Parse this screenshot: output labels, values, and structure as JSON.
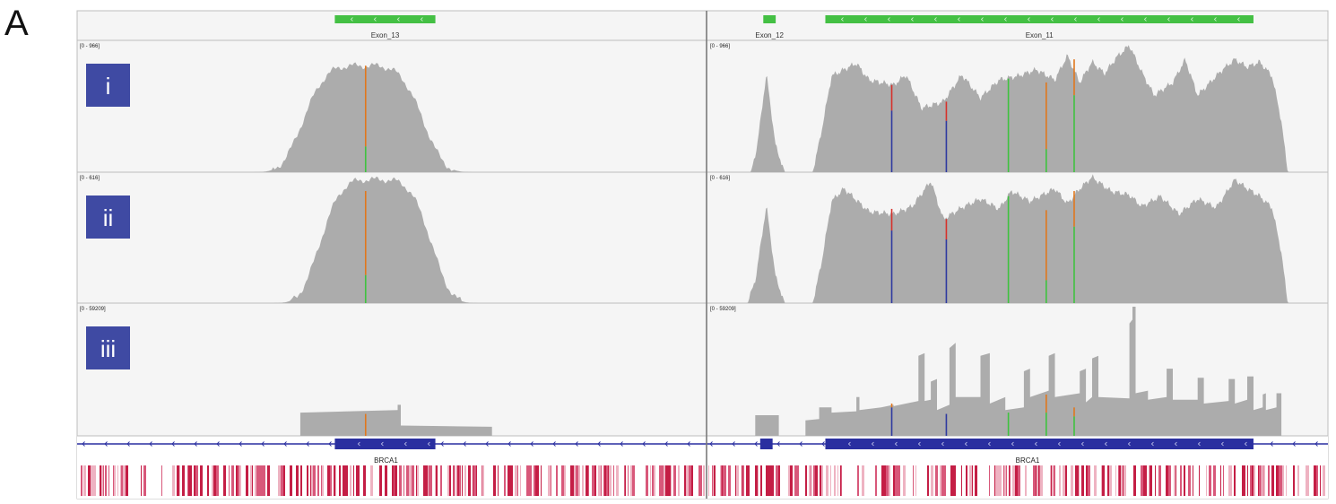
{
  "figure": {
    "panel_letter": "A"
  },
  "colors": {
    "coverage": "#acacac",
    "exon": "#44c044",
    "gene": "#2a2fa0",
    "badge": "#3f4aa3",
    "badge_text": "#ffffff",
    "conservation": "#c41e45",
    "track_bg": "#f5f5f5",
    "divider": "#bdbdbd",
    "marker_orange": "#e0771d",
    "marker_green": "#3fc23f",
    "marker_red": "#d6312b",
    "marker_blue": "#2f3aa0"
  },
  "chart_data": {
    "type": "area",
    "description_panels": [
      "left",
      "right"
    ],
    "exon_track": {
      "left": [
        {
          "label": "Exon_13",
          "start": 0.41,
          "end": 0.57
        }
      ],
      "right": [
        {
          "label": "Exon_12",
          "start": 0.09,
          "end": 0.11
        },
        {
          "label": "Exon_11",
          "start": 0.19,
          "end": 0.88
        }
      ]
    },
    "tracks": [
      {
        "name": "i",
        "range_label": "[0 - 966]",
        "max": 966,
        "left_peaks": [
          {
            "center": 0.455,
            "width": 0.28,
            "height": 0.83
          }
        ],
        "right_profile": [
          [
            0.07,
            0
          ],
          [
            0.08,
            0.2
          ],
          [
            0.095,
            0.77
          ],
          [
            0.11,
            0.2
          ],
          [
            0.125,
            0
          ],
          [
            0.17,
            0
          ],
          [
            0.185,
            0.35
          ],
          [
            0.2,
            0.75
          ],
          [
            0.24,
            0.85
          ],
          [
            0.26,
            0.72
          ],
          [
            0.3,
            0.68
          ],
          [
            0.32,
            0.76
          ],
          [
            0.345,
            0.5
          ],
          [
            0.38,
            0.55
          ],
          [
            0.41,
            0.76
          ],
          [
            0.44,
            0.58
          ],
          [
            0.47,
            0.72
          ],
          [
            0.5,
            0.75
          ],
          [
            0.53,
            0.8
          ],
          [
            0.56,
            0.72
          ],
          [
            0.58,
            0.91
          ],
          [
            0.6,
            0.7
          ],
          [
            0.62,
            0.86
          ],
          [
            0.64,
            0.77
          ],
          [
            0.66,
            0.9
          ],
          [
            0.68,
            0.99
          ],
          [
            0.7,
            0.78
          ],
          [
            0.72,
            0.6
          ],
          [
            0.75,
            0.7
          ],
          [
            0.77,
            0.88
          ],
          [
            0.79,
            0.6
          ],
          [
            0.83,
            0.8
          ],
          [
            0.85,
            0.88
          ],
          [
            0.87,
            0.82
          ],
          [
            0.89,
            0.86
          ],
          [
            0.91,
            0.75
          ],
          [
            0.925,
            0.4
          ],
          [
            0.935,
            0
          ]
        ],
        "left_markers": [
          {
            "pos": 0.459,
            "top": "marker_orange",
            "bottom": "marker_green",
            "level": 0.83,
            "split": 0.2
          }
        ],
        "right_markers": [
          {
            "pos": 0.297,
            "top": "marker_red",
            "bottom": "marker_blue",
            "level": 0.68,
            "split": 0.48
          },
          {
            "pos": 0.385,
            "top": "marker_red",
            "bottom": "marker_blue",
            "level": 0.55,
            "split": 0.4
          },
          {
            "pos": 0.485,
            "top": "marker_green",
            "bottom": "marker_green",
            "level": 0.73,
            "split": 0.73
          },
          {
            "pos": 0.546,
            "top": "marker_orange",
            "bottom": "marker_green",
            "level": 0.7,
            "split": 0.18
          },
          {
            "pos": 0.591,
            "top": "marker_orange",
            "bottom": "marker_green",
            "level": 0.88,
            "split": 0.6
          }
        ]
      },
      {
        "name": "ii",
        "range_label": "[0 - 616]",
        "max": 616,
        "left_peaks": [
          {
            "center": 0.475,
            "width": 0.26,
            "height": 0.97
          }
        ],
        "right_profile": [
          [
            0.065,
            0
          ],
          [
            0.078,
            0.2
          ],
          [
            0.095,
            0.77
          ],
          [
            0.11,
            0.2
          ],
          [
            0.125,
            0
          ],
          [
            0.17,
            0
          ],
          [
            0.185,
            0.35
          ],
          [
            0.2,
            0.8
          ],
          [
            0.22,
            0.9
          ],
          [
            0.26,
            0.72
          ],
          [
            0.3,
            0.7
          ],
          [
            0.33,
            0.76
          ],
          [
            0.36,
            0.96
          ],
          [
            0.38,
            0.66
          ],
          [
            0.41,
            0.75
          ],
          [
            0.44,
            0.82
          ],
          [
            0.47,
            0.74
          ],
          [
            0.49,
            0.88
          ],
          [
            0.52,
            0.8
          ],
          [
            0.56,
            0.9
          ],
          [
            0.58,
            0.78
          ],
          [
            0.6,
            0.9
          ],
          [
            0.62,
            0.99
          ],
          [
            0.65,
            0.88
          ],
          [
            0.68,
            0.85
          ],
          [
            0.7,
            0.76
          ],
          [
            0.73,
            0.84
          ],
          [
            0.76,
            0.7
          ],
          [
            0.79,
            0.82
          ],
          [
            0.82,
            0.75
          ],
          [
            0.85,
            0.97
          ],
          [
            0.87,
            0.9
          ],
          [
            0.89,
            0.84
          ],
          [
            0.91,
            0.75
          ],
          [
            0.925,
            0.4
          ],
          [
            0.935,
            0
          ]
        ],
        "left_markers": [
          {
            "pos": 0.459,
            "top": "marker_orange",
            "bottom": "marker_green",
            "level": 0.88,
            "split": 0.22
          }
        ],
        "right_markers": [
          {
            "pos": 0.297,
            "top": "marker_red",
            "bottom": "marker_blue",
            "level": 0.74,
            "split": 0.57
          },
          {
            "pos": 0.385,
            "top": "marker_red",
            "bottom": "marker_blue",
            "level": 0.66,
            "split": 0.5
          },
          {
            "pos": 0.485,
            "top": "marker_green",
            "bottom": "marker_green",
            "level": 0.84,
            "split": 0.84
          },
          {
            "pos": 0.546,
            "top": "marker_orange",
            "bottom": "marker_green",
            "level": 0.73,
            "split": 0.18
          },
          {
            "pos": 0.591,
            "top": "marker_orange",
            "bottom": "marker_green",
            "level": 0.88,
            "split": 0.6
          }
        ]
      },
      {
        "name": "iii",
        "range_label": "[0 - 59209]",
        "max": 59209,
        "left_steps": [
          [
            0.355,
            0
          ],
          [
            0.355,
            0.18
          ],
          [
            0.51,
            0.2
          ],
          [
            0.51,
            0.24
          ],
          [
            0.515,
            0.24
          ],
          [
            0.515,
            0.08
          ],
          [
            0.66,
            0.07
          ],
          [
            0.66,
            0
          ]
        ],
        "right_steps": [
          [
            0.077,
            0
          ],
          [
            0.077,
            0.16
          ],
          [
            0.115,
            0.16
          ],
          [
            0.115,
            0
          ],
          [
            0.158,
            0
          ],
          [
            0.158,
            0.12
          ],
          [
            0.18,
            0.13
          ],
          [
            0.18,
            0.22
          ],
          [
            0.2,
            0.22
          ],
          [
            0.2,
            0.18
          ],
          [
            0.24,
            0.19
          ],
          [
            0.24,
            0.3
          ],
          [
            0.245,
            0.3
          ],
          [
            0.245,
            0.2
          ],
          [
            0.28,
            0.22
          ],
          [
            0.3,
            0.24
          ],
          [
            0.3,
            0.23
          ],
          [
            0.34,
            0.27
          ],
          [
            0.34,
            0.62
          ],
          [
            0.35,
            0.64
          ],
          [
            0.35,
            0.27
          ],
          [
            0.36,
            0.28
          ],
          [
            0.36,
            0.42
          ],
          [
            0.37,
            0.44
          ],
          [
            0.37,
            0.2
          ],
          [
            0.39,
            0.24
          ],
          [
            0.39,
            0.68
          ],
          [
            0.4,
            0.72
          ],
          [
            0.4,
            0.3
          ],
          [
            0.44,
            0.3
          ],
          [
            0.44,
            0.62
          ],
          [
            0.455,
            0.64
          ],
          [
            0.455,
            0.25
          ],
          [
            0.48,
            0.3
          ],
          [
            0.48,
            0.2
          ],
          [
            0.51,
            0.22
          ],
          [
            0.51,
            0.5
          ],
          [
            0.52,
            0.52
          ],
          [
            0.52,
            0.3
          ],
          [
            0.55,
            0.35
          ],
          [
            0.55,
            0.62
          ],
          [
            0.56,
            0.64
          ],
          [
            0.56,
            0.3
          ],
          [
            0.6,
            0.33
          ],
          [
            0.6,
            0.5
          ],
          [
            0.61,
            0.52
          ],
          [
            0.61,
            0.26
          ],
          [
            0.62,
            0.3
          ],
          [
            0.62,
            0.6
          ],
          [
            0.63,
            0.62
          ],
          [
            0.63,
            0.3
          ],
          [
            0.68,
            0.29
          ],
          [
            0.68,
            0.87
          ],
          [
            0.685,
            0.9
          ],
          [
            0.685,
            1.0
          ],
          [
            0.69,
            1.0
          ],
          [
            0.69,
            0.33
          ],
          [
            0.71,
            0.35
          ],
          [
            0.71,
            0.28
          ],
          [
            0.74,
            0.3
          ],
          [
            0.74,
            0.52
          ],
          [
            0.75,
            0.52
          ],
          [
            0.75,
            0.28
          ],
          [
            0.79,
            0.28
          ],
          [
            0.79,
            0.45
          ],
          [
            0.8,
            0.45
          ],
          [
            0.8,
            0.25
          ],
          [
            0.84,
            0.27
          ],
          [
            0.84,
            0.44
          ],
          [
            0.85,
            0.44
          ],
          [
            0.85,
            0.25
          ],
          [
            0.87,
            0.28
          ],
          [
            0.87,
            0.46
          ],
          [
            0.88,
            0.46
          ],
          [
            0.88,
            0.2
          ],
          [
            0.895,
            0.22
          ],
          [
            0.895,
            0.32
          ],
          [
            0.9,
            0.33
          ],
          [
            0.9,
            0.2
          ],
          [
            0.917,
            0.22
          ],
          [
            0.917,
            0.33
          ],
          [
            0.925,
            0.33
          ],
          [
            0.925,
            0
          ]
        ],
        "left_markers": [
          {
            "pos": 0.459,
            "top": "marker_orange",
            "bottom": "marker_orange",
            "level": 0.17,
            "split": 0.17
          }
        ],
        "right_markers": [
          {
            "pos": 0.297,
            "top": "marker_orange",
            "bottom": "marker_blue",
            "level": 0.25,
            "split": 0.22
          },
          {
            "pos": 0.385,
            "top": "marker_blue",
            "bottom": "marker_blue",
            "level": 0.17,
            "split": 0.17
          },
          {
            "pos": 0.485,
            "top": "marker_green",
            "bottom": "marker_green",
            "level": 0.18,
            "split": 0.18
          },
          {
            "pos": 0.546,
            "top": "marker_orange",
            "bottom": "marker_green",
            "level": 0.32,
            "split": 0.18
          },
          {
            "pos": 0.591,
            "top": "marker_orange",
            "bottom": "marker_green",
            "level": 0.22,
            "split": 0.15
          }
        ]
      }
    ],
    "gene_track": {
      "label": "BRCA1",
      "left_blocks": [
        {
          "start": 0.41,
          "end": 0.57
        }
      ],
      "right_blocks": [
        {
          "start": 0.085,
          "end": 0.105
        },
        {
          "start": 0.19,
          "end": 0.88
        }
      ]
    }
  }
}
